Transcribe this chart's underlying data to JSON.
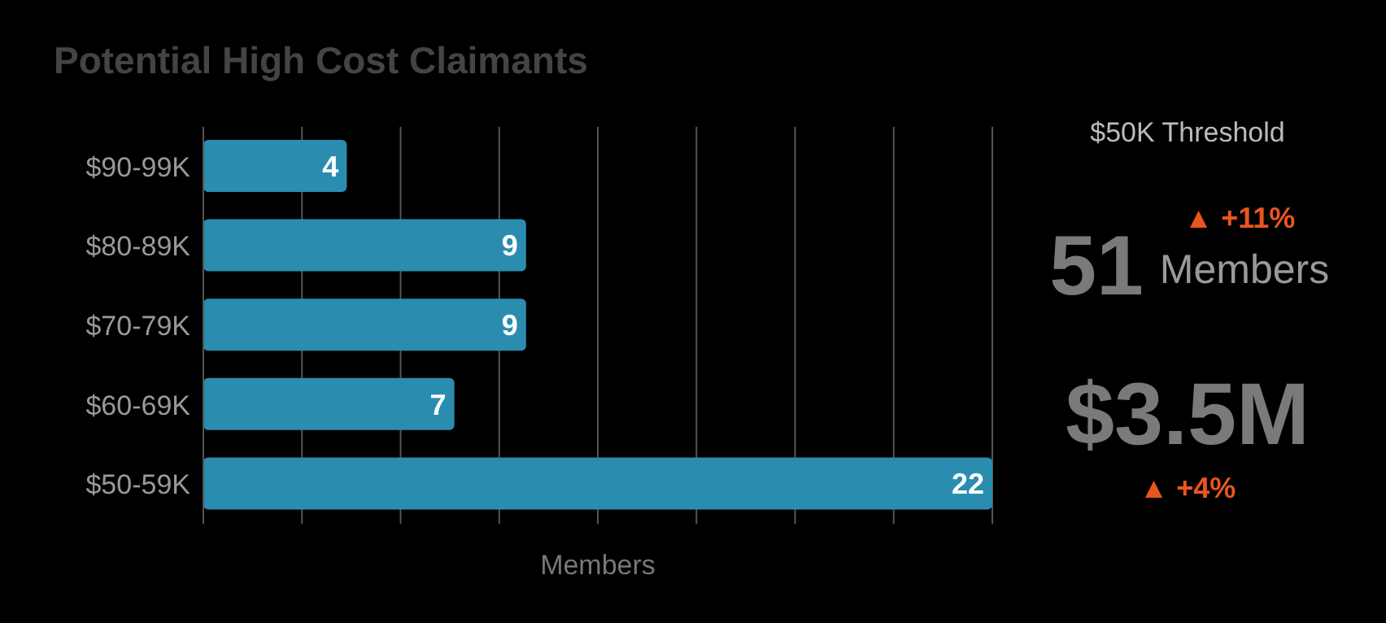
{
  "chart_data": {
    "type": "bar",
    "orientation": "horizontal",
    "title": "Potential High Cost Claimants",
    "xlabel": "Members",
    "categories": [
      "$90-99K",
      "$80-89K",
      "$70-79K",
      "$60-69K",
      "$50-59K"
    ],
    "values": [
      4,
      9,
      9,
      7,
      22
    ],
    "color": "#2a8db0",
    "data_labels": true,
    "xlim": [
      0,
      22
    ],
    "xticks": [
      {
        "value": 0,
        "label": null
      },
      {
        "value": 2.75,
        "label": null
      },
      {
        "value": 5.5,
        "label": null
      },
      {
        "value": 8.25,
        "label": null
      },
      {
        "value": 11,
        "label": null
      },
      {
        "value": 13.75,
        "label": null
      },
      {
        "value": 16.5,
        "label": null
      },
      {
        "value": 19.25,
        "label": null
      },
      {
        "value": 22,
        "label": null
      }
    ],
    "grid": "x",
    "legend": false,
    "tick_labels": "y",
    "annotations": [
      "$50K Threshold",
      "▲ +11%",
      "51",
      "Members",
      "$3.5M",
      "▲ +4%"
    ]
  }
}
